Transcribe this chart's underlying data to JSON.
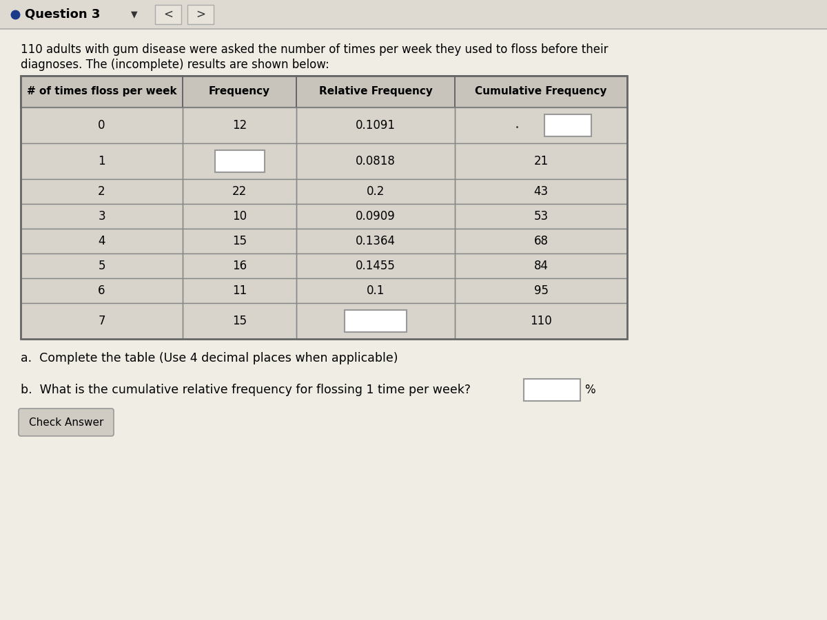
{
  "title_question": "Question 3",
  "description_line1": "110 adults with gum disease were asked the number of times per week they used to floss before their",
  "description_line2": "diagnoses. The (incomplete) results are shown below:",
  "col_headers": [
    "# of times floss per week",
    "Frequency",
    "Relative Frequency",
    "Cumulative Frequency"
  ],
  "rows": [
    {
      "times": "0",
      "freq": "12",
      "rel_freq": "0.1091",
      "cum_freq": "",
      "cum_freq_blank": true,
      "freq_blank": false,
      "rel_freq_blank": false,
      "tall": true
    },
    {
      "times": "1",
      "freq": "",
      "rel_freq": "0.0818",
      "cum_freq": "21",
      "cum_freq_blank": false,
      "freq_blank": true,
      "rel_freq_blank": false,
      "tall": true
    },
    {
      "times": "2",
      "freq": "22",
      "rel_freq": "0.2",
      "cum_freq": "43",
      "cum_freq_blank": false,
      "freq_blank": false,
      "rel_freq_blank": false,
      "tall": false
    },
    {
      "times": "3",
      "freq": "10",
      "rel_freq": "0.0909",
      "cum_freq": "53",
      "cum_freq_blank": false,
      "freq_blank": false,
      "rel_freq_blank": false,
      "tall": false
    },
    {
      "times": "4",
      "freq": "15",
      "rel_freq": "0.1364",
      "cum_freq": "68",
      "cum_freq_blank": false,
      "freq_blank": false,
      "rel_freq_blank": false,
      "tall": false
    },
    {
      "times": "5",
      "freq": "16",
      "rel_freq": "0.1455",
      "cum_freq": "84",
      "cum_freq_blank": false,
      "freq_blank": false,
      "rel_freq_blank": false,
      "tall": false
    },
    {
      "times": "6",
      "freq": "11",
      "rel_freq": "0.1",
      "cum_freq": "95",
      "cum_freq_blank": false,
      "freq_blank": false,
      "rel_freq_blank": false,
      "tall": false
    },
    {
      "times": "7",
      "freq": "15",
      "rel_freq": "",
      "cum_freq": "110",
      "cum_freq_blank": false,
      "freq_blank": false,
      "rel_freq_blank": true,
      "tall": true
    }
  ],
  "question_a": "a.  Complete the table (Use 4 decimal places when applicable)",
  "question_b": "b.  What is the cumulative relative frequency for flossing 1 time per week?",
  "bg_color": "#f0ede5",
  "header_bg": "#c8c4bc",
  "row_bg_even": "#d8d4cc",
  "row_bg_odd": "#ccc8c0",
  "table_border": "#666666",
  "inner_border": "#888888",
  "text_color": "#000000",
  "blank_box_color": "#ffffff",
  "button_bg": "#d0ccc4",
  "button_border": "#999999",
  "topbar_bg": "#dedad2",
  "nav_box_bg": "#e8e4dc",
  "bullet_color": "#1a3a8a"
}
